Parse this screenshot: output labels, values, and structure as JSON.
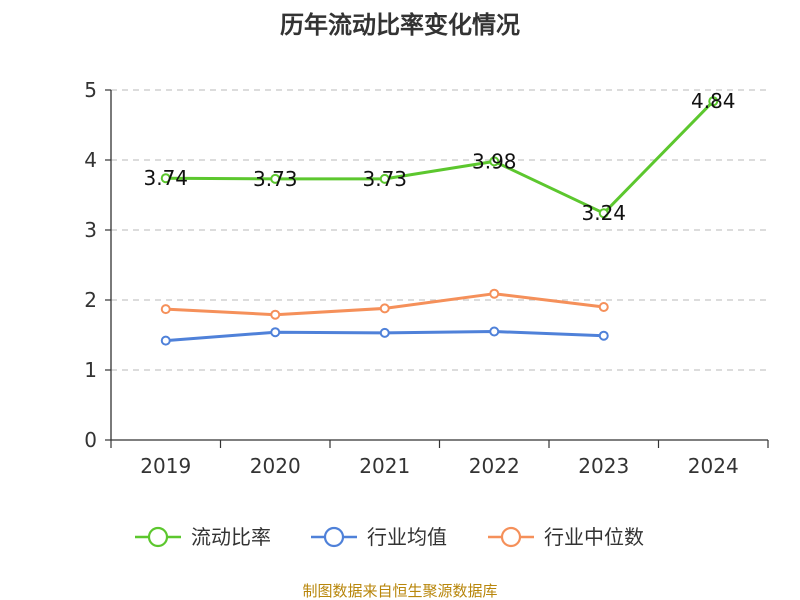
{
  "chart_data": {
    "type": "line",
    "title": "历年流动比率变化情况",
    "categories": [
      "2019",
      "2020",
      "2021",
      "2022",
      "2023",
      "2024"
    ],
    "ylim": [
      0,
      5
    ],
    "yticks": [
      "0",
      "1",
      "2",
      "3",
      "4",
      "5"
    ],
    "grid": true,
    "legend_position": "bottom",
    "series": [
      {
        "name": "流动比率",
        "color": "#5cc72e",
        "values": [
          3.74,
          3.73,
          3.73,
          3.98,
          3.24,
          4.84
        ],
        "labels": [
          "3.74",
          "3.73",
          "3.73",
          "3.98",
          "3.24",
          "4.84"
        ]
      },
      {
        "name": "行业均值",
        "color": "#4f81d9",
        "values": [
          1.42,
          1.54,
          1.53,
          1.55,
          1.49,
          null
        ]
      },
      {
        "name": "行业中位数",
        "color": "#f5905a",
        "values": [
          1.87,
          1.79,
          1.88,
          2.09,
          1.9,
          null
        ]
      }
    ],
    "source": "制图数据来自恒生聚源数据库"
  }
}
